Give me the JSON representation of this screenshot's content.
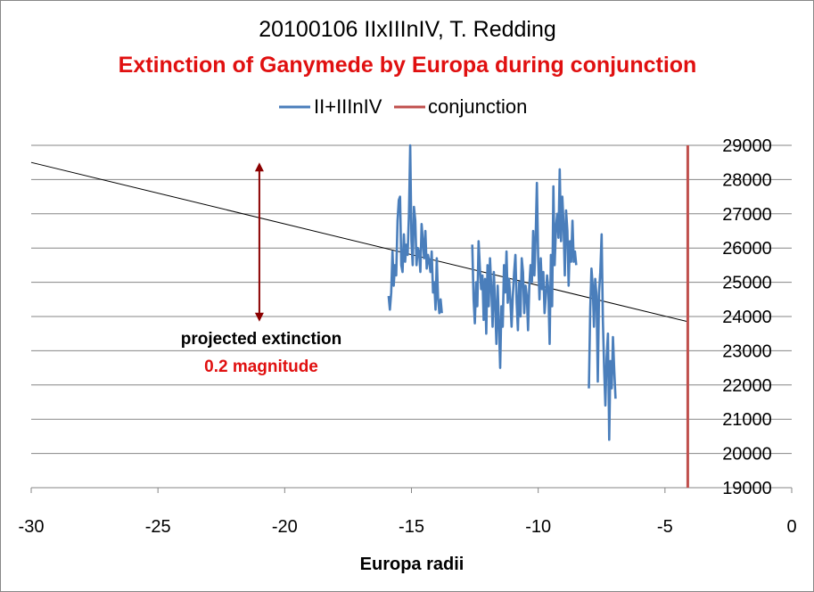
{
  "chart_data": {
    "type": "line",
    "title": "20100106 IIxIIInIV, T. Redding",
    "subtitle": "Extinction of Ganymede by Europa during conjunction",
    "xlabel": "Europa radii",
    "ylabel": "",
    "xlim": [
      -30,
      0
    ],
    "ylim": [
      19000,
      29000
    ],
    "x_ticks": [
      -30,
      -25,
      -20,
      -15,
      -10,
      -5,
      0
    ],
    "y_ticks": [
      19000,
      20000,
      21000,
      22000,
      23000,
      24000,
      25000,
      26000,
      27000,
      28000,
      29000
    ],
    "y_axis_position": "right",
    "grid": "horizontal",
    "legend_position": "top-center",
    "series": [
      {
        "name": "II+IIInIV",
        "color": "#4a7ebb",
        "x": [
          -15.9,
          -15.85,
          -15.8,
          -15.75,
          -15.7,
          -15.65,
          -15.6,
          -15.55,
          -15.5,
          -15.45,
          -15.4,
          -15.35,
          -15.3,
          -15.25,
          -15.2,
          -15.15,
          -15.1,
          -15.05,
          -15.0,
          -14.95,
          -14.9,
          -14.85,
          -14.8,
          -14.75,
          -14.7,
          -14.65,
          -14.6,
          -14.55,
          -14.5,
          -14.45,
          -14.4,
          -14.35,
          -14.3,
          -14.25,
          -14.2,
          -14.15,
          -14.1,
          -14.05,
          -14.0,
          -13.95,
          -13.9,
          -13.85,
          -13.8,
          -12.6,
          -12.55,
          -12.5,
          -12.45,
          -12.4,
          -12.35,
          -12.3,
          -12.25,
          -12.2,
          -12.15,
          -12.1,
          -12.05,
          -12.0,
          -11.95,
          -11.9,
          -11.85,
          -11.8,
          -11.75,
          -11.7,
          -11.65,
          -11.6,
          -11.55,
          -11.5,
          -11.45,
          -11.4,
          -11.35,
          -11.3,
          -11.25,
          -11.2,
          -11.15,
          -11.1,
          -11.05,
          -11.0,
          -10.95,
          -10.9,
          -10.85,
          -10.8,
          -10.75,
          -10.7,
          -10.65,
          -10.6,
          -10.55,
          -10.5,
          -10.45,
          -10.4,
          -10.35,
          -10.3,
          -10.25,
          -10.2,
          -10.15,
          -10.1,
          -10.05,
          -10.0,
          -9.95,
          -9.9,
          -9.85,
          -9.8,
          -9.75,
          -9.7,
          -9.65,
          -9.6,
          -9.55,
          -9.5,
          -9.45,
          -9.4,
          -9.35,
          -9.3,
          -9.25,
          -9.2,
          -9.15,
          -9.1,
          -9.05,
          -9.0,
          -8.95,
          -8.9,
          -8.85,
          -8.8,
          -8.75,
          -8.7,
          -8.65,
          -8.6,
          -8.55,
          -8.5,
          -8.0,
          -7.95,
          -7.9,
          -7.85,
          -7.8,
          -7.75,
          -7.7,
          -7.65,
          -7.6,
          -7.55,
          -7.5,
          -7.45,
          -7.4,
          -7.35,
          -7.3,
          -7.25,
          -7.2,
          -7.15,
          -7.1,
          -7.05,
          -7.0,
          -6.95
        ],
        "y": [
          24600,
          24200,
          24700,
          25900,
          24900,
          25500,
          25200,
          26800,
          27400,
          27500,
          25500,
          25300,
          26400,
          25600,
          26100,
          25800,
          27000,
          29000,
          26200,
          25500,
          27200,
          26800,
          25500,
          26000,
          25900,
          25300,
          26700,
          26200,
          25700,
          26500,
          25400,
          25800,
          25600,
          25300,
          25900,
          24700,
          25000,
          24200,
          25700,
          24500,
          24100,
          24500,
          24100,
          26100,
          24500,
          23800,
          25000,
          24300,
          26200,
          25400,
          24800,
          25200,
          23900,
          25100,
          23500,
          25500,
          24300,
          25700,
          24800,
          23700,
          25300,
          24400,
          23200,
          24900,
          23800,
          22500,
          24300,
          23700,
          25500,
          24700,
          25900,
          24400,
          25100,
          24500,
          23700,
          24600,
          25300,
          25800,
          24400,
          23600,
          25000,
          24000,
          25700,
          25300,
          24100,
          24900,
          24600,
          23600,
          24900,
          25500,
          25000,
          26500,
          25200,
          26300,
          27900,
          25600,
          24500,
          25700,
          24800,
          25300,
          24100,
          24600,
          25200,
          24800,
          23200,
          25800,
          24300,
          27800,
          25500,
          26600,
          27000,
          26300,
          28300,
          26200,
          27500,
          26700,
          25200,
          27100,
          26500,
          24900,
          26200,
          25600,
          26800,
          25600,
          25900,
          25500,
          21900,
          24200,
          25400,
          24900,
          23700,
          25100,
          24600,
          22100,
          24700,
          25300,
          26400,
          23900,
          22500,
          21400,
          22800,
          23500,
          20400,
          22700,
          21900,
          23400,
          22400,
          21600
        ]
      },
      {
        "name": "conjunction",
        "color": "#c0504d",
        "x": [
          -4.1,
          -4.1
        ],
        "y": [
          19000,
          29000
        ]
      }
    ],
    "trend_line": {
      "x": [
        -30,
        -4.1
      ],
      "y": [
        28500,
        23850
      ],
      "color": "#000000"
    },
    "annotations": [
      {
        "text": "projected extinction",
        "color": "#000000"
      },
      {
        "text": "0.2 magnitude",
        "color": "#e01010"
      }
    ],
    "extinction_arrow": {
      "x": -21,
      "y": [
        28500,
        23850
      ],
      "color": "#8b0000"
    }
  },
  "colors": {
    "subtitle": "#e01010",
    "grid": "#868686",
    "axis": "#868686"
  }
}
